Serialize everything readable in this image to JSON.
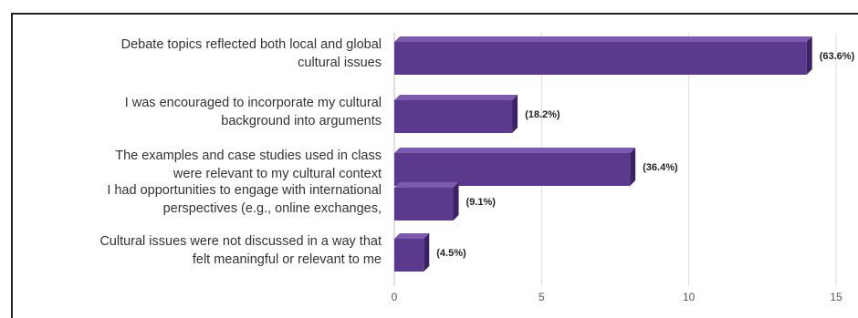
{
  "chart_data": {
    "type": "bar",
    "orientation": "horizontal",
    "categories": [
      [
        "Debate topics reflected both local and global",
        "cultural issues"
      ],
      [
        "I was encouraged to incorporate my cultural",
        "background into arguments"
      ],
      [
        "The examples and case studies used in class",
        "were relevant to my cultural context"
      ],
      [
        "I had opportunities to engage with international",
        "perspectives (e.g., online exchanges,"
      ],
      [
        "Cultural issues were not discussed in a way that",
        "felt meaningful or relevant to me"
      ]
    ],
    "values": [
      14,
      4,
      8,
      2,
      1
    ],
    "data_labels": [
      "(63.6%)",
      "(18.2%)",
      "(36.4%)",
      "(9.1%)",
      "(4.5%)"
    ],
    "xlim": [
      0,
      15
    ],
    "xticks": [
      0,
      5,
      10,
      15
    ],
    "grid": true,
    "bar_color": "#5b3a8e",
    "bar_top_color": "#7c5aae",
    "bar_side_color": "#3b2266"
  }
}
